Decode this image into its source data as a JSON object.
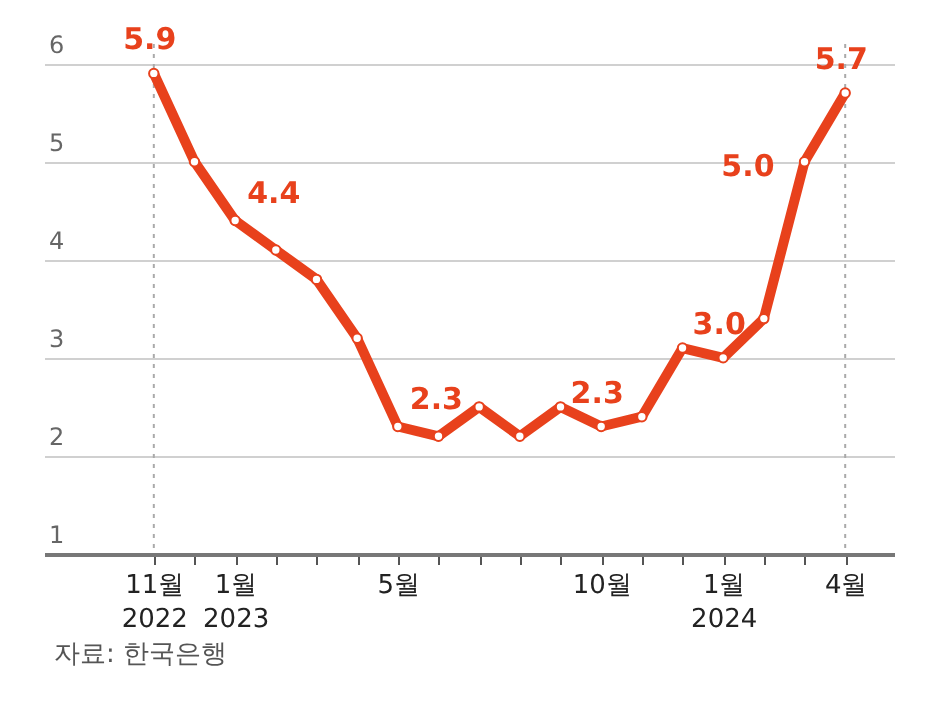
{
  "chart_data": {
    "type": "line",
    "categories": [
      "11월\n2022",
      null,
      "1월\n2023",
      null,
      null,
      null,
      "5월",
      null,
      null,
      null,
      null,
      "10월",
      null,
      null,
      "1월\n2024",
      null,
      null,
      "4월"
    ],
    "series": [
      {
        "color": "#e8411c",
        "values": [
          5.9,
          5.0,
          4.4,
          4.1,
          3.8,
          3.2,
          2.3,
          2.2,
          2.5,
          2.2,
          2.5,
          2.3,
          2.4,
          3.1,
          3.0,
          3.4,
          5.0,
          5.7
        ],
        "value_labels": [
          "5.9",
          null,
          "4.4",
          null,
          null,
          null,
          "2.3",
          null,
          null,
          null,
          null,
          "2.3",
          null,
          null,
          "3.0",
          null,
          "5.0",
          "5.7"
        ]
      }
    ],
    "ylim": [
      1,
      6.2
    ],
    "yticks": [
      1,
      2,
      3,
      4,
      5,
      6
    ],
    "grid": "y",
    "marker": "circle",
    "line_style": "solid",
    "ref_lines": [
      {
        "axis": "x",
        "value": "11월\n2022",
        "line_style": "dotted",
        "color": "#aaaaaa"
      },
      {
        "axis": "x",
        "value": "4월",
        "line_style": "dotted",
        "color": "#aaaaaa"
      }
    ],
    "annotations": [
      "자료: 한국은행"
    ]
  }
}
